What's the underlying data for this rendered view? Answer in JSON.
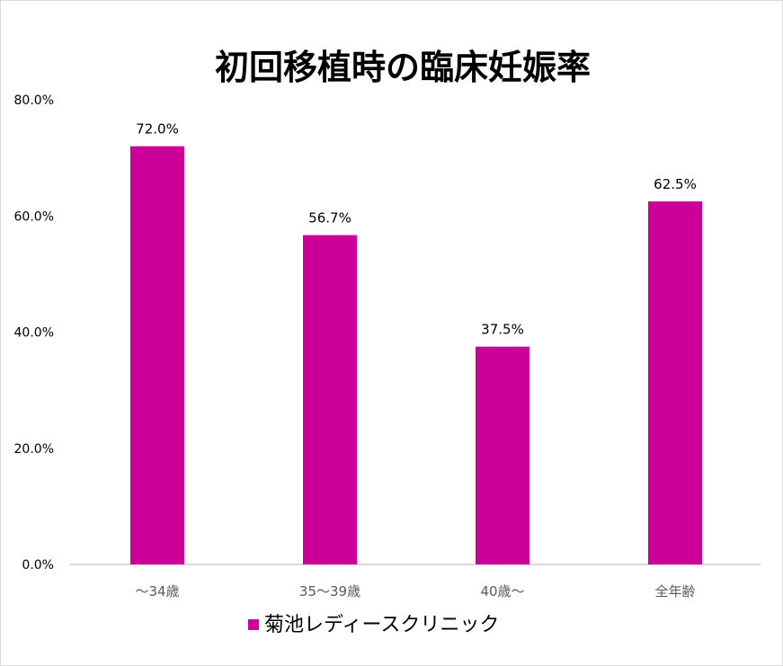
{
  "chart_data": {
    "type": "bar",
    "title": "初回移植時の臨床妊娠率",
    "categories": [
      "～34歳",
      "35～39歳",
      "40歳～",
      "全年齢"
    ],
    "series": [
      {
        "name": "菊池レディースクリニック",
        "values": [
          72.0,
          56.7,
          37.5,
          62.5
        ],
        "color": "#CC0099"
      }
    ],
    "data_labels": [
      "72.0%",
      "56.7%",
      "37.5%",
      "62.5%"
    ],
    "y_ticks": [
      0,
      20,
      40,
      60,
      80
    ],
    "y_tick_labels": [
      "0.0%",
      "20.0%",
      "40.0%",
      "60.0%",
      "80.0%"
    ],
    "ylim": [
      0,
      80
    ],
    "xlabel": "",
    "ylabel": "",
    "grid": false,
    "legend": "bottom"
  }
}
